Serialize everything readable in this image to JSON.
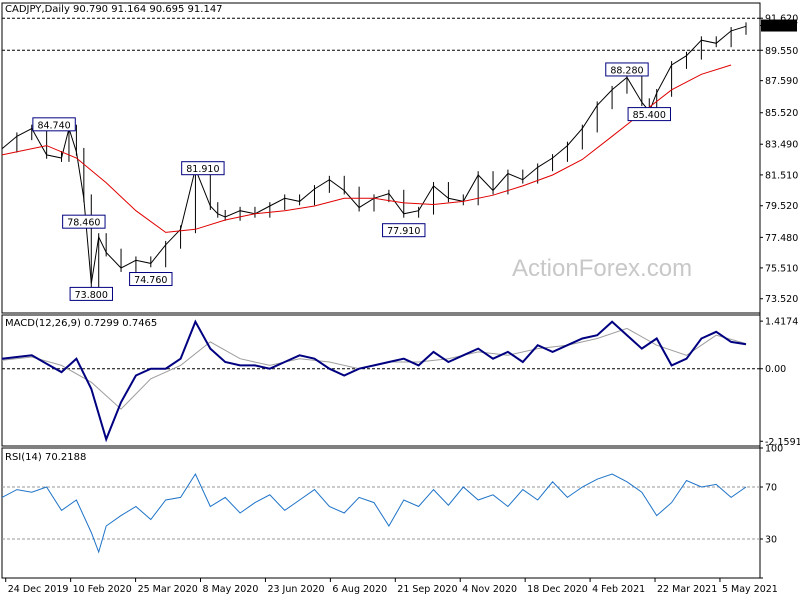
{
  "header": {
    "symbol_line": "CADJPY,Daily  90.790 91.164 90.695 91.147",
    "macd_label": "MACD(12,26,9) 0.7299 0.7465",
    "rsi_label": "RSI(14) 70.2188"
  },
  "watermark": "ActionForex.com",
  "colors": {
    "price": "#000000",
    "ma": "#e00000",
    "trend": "#000000",
    "macd": "#000080",
    "signal": "#9e9e9e",
    "rsi": "#1e73c8",
    "label_box": "#000080",
    "current_price_box": "#000000"
  },
  "chart_data": [
    {
      "type": "line",
      "panel": "price",
      "title": "CADJPY,Daily 90.790 91.164 90.695 91.147",
      "y_ticks": [
        "91.620",
        "91.147",
        "89.550",
        "87.590",
        "85.520",
        "83.490",
        "81.510",
        "79.520",
        "77.480",
        "75.510",
        "73.520"
      ],
      "ylim": [
        72.6,
        92.6
      ],
      "x_ticks": [
        "24 Dec 2019",
        "10 Feb 2020",
        "25 Mar 2020",
        "8 May 2020",
        "23 Jun 2020",
        "6 Aug 2020",
        "21 Sep 2020",
        "4 Nov 2020",
        "18 Dec 2020",
        "4 Feb 2021",
        "22 Mar 2021",
        "5 May 2021"
      ],
      "horizontal_levels": [
        91.62,
        89.55
      ],
      "current_price": "91.147",
      "annotations": [
        {
          "text": "84.740",
          "x": 0.07,
          "y": 84.74
        },
        {
          "text": "78.460",
          "x": 0.11,
          "y": 78.46
        },
        {
          "text": "73.800",
          "x": 0.12,
          "y": 73.8
        },
        {
          "text": "74.760",
          "x": 0.2,
          "y": 74.76
        },
        {
          "text": "81.910",
          "x": 0.27,
          "y": 81.91
        },
        {
          "text": "77.910",
          "x": 0.54,
          "y": 77.91
        },
        {
          "text": "88.280",
          "x": 0.84,
          "y": 88.28
        },
        {
          "text": "85.400",
          "x": 0.87,
          "y": 85.4
        }
      ],
      "series": [
        {
          "name": "Close",
          "x": [
            0,
            0.02,
            0.04,
            0.06,
            0.08,
            0.09,
            0.1,
            0.11,
            0.12,
            0.13,
            0.14,
            0.16,
            0.18,
            0.2,
            0.22,
            0.24,
            0.26,
            0.28,
            0.29,
            0.3,
            0.32,
            0.34,
            0.36,
            0.38,
            0.4,
            0.42,
            0.44,
            0.46,
            0.48,
            0.5,
            0.52,
            0.54,
            0.56,
            0.58,
            0.6,
            0.62,
            0.64,
            0.66,
            0.68,
            0.7,
            0.72,
            0.74,
            0.76,
            0.78,
            0.8,
            0.82,
            0.84,
            0.86,
            0.87,
            0.88,
            0.9,
            0.92,
            0.94,
            0.96,
            0.98,
            1
          ],
          "values": [
            83.2,
            84.0,
            84.5,
            82.8,
            82.6,
            84.5,
            83.0,
            80.0,
            74.5,
            77.5,
            76.5,
            75.5,
            76.0,
            75.8,
            77.0,
            78.0,
            81.9,
            79.5,
            79.0,
            78.8,
            79.2,
            79.0,
            79.5,
            80.0,
            79.8,
            80.6,
            81.2,
            80.5,
            79.4,
            80.0,
            80.3,
            79.0,
            79.2,
            80.8,
            80.0,
            79.8,
            81.5,
            80.5,
            81.6,
            81.2,
            82.0,
            82.6,
            83.4,
            84.5,
            86.0,
            87.0,
            87.8,
            86.2,
            85.6,
            86.8,
            88.6,
            89.2,
            90.2,
            90.0,
            90.8,
            91.1
          ]
        },
        {
          "name": "SMA",
          "x": [
            0,
            0.06,
            0.1,
            0.14,
            0.18,
            0.22,
            0.26,
            0.3,
            0.34,
            0.38,
            0.42,
            0.46,
            0.5,
            0.54,
            0.58,
            0.62,
            0.66,
            0.7,
            0.74,
            0.78,
            0.82,
            0.86,
            0.9,
            0.94,
            0.98
          ],
          "values": [
            82.8,
            83.4,
            82.6,
            81.0,
            79.2,
            77.8,
            78.0,
            78.6,
            79.0,
            79.2,
            79.5,
            80.0,
            80.0,
            79.7,
            79.6,
            79.8,
            80.2,
            80.8,
            81.5,
            82.5,
            84.0,
            85.5,
            87.0,
            88.0,
            88.6
          ]
        }
      ]
    },
    {
      "type": "line",
      "panel": "macd",
      "title": "MACD(12,26,9) 0.7299 0.7465",
      "y_ticks": [
        "1.4174",
        "0.00",
        "-2.1591"
      ],
      "ylim": [
        -2.3,
        1.6
      ],
      "series": [
        {
          "name": "MACD",
          "x": [
            0,
            0.02,
            0.04,
            0.06,
            0.08,
            0.1,
            0.12,
            0.14,
            0.16,
            0.18,
            0.2,
            0.22,
            0.24,
            0.26,
            0.28,
            0.3,
            0.32,
            0.34,
            0.36,
            0.38,
            0.4,
            0.42,
            0.44,
            0.46,
            0.48,
            0.5,
            0.52,
            0.54,
            0.56,
            0.58,
            0.6,
            0.62,
            0.64,
            0.66,
            0.68,
            0.7,
            0.72,
            0.74,
            0.76,
            0.78,
            0.8,
            0.82,
            0.84,
            0.86,
            0.88,
            0.9,
            0.92,
            0.94,
            0.96,
            0.98,
            1
          ],
          "values": [
            0.3,
            0.35,
            0.4,
            0.15,
            -0.1,
            0.3,
            -0.6,
            -2.1,
            -1.0,
            -0.2,
            0.0,
            0.0,
            0.3,
            1.4,
            0.6,
            0.2,
            0.1,
            0.1,
            0.0,
            0.2,
            0.4,
            0.3,
            0.0,
            -0.2,
            0.0,
            0.1,
            0.2,
            0.3,
            0.1,
            0.5,
            0.2,
            0.4,
            0.6,
            0.3,
            0.5,
            0.2,
            0.7,
            0.5,
            0.7,
            0.9,
            1.0,
            1.4,
            1.0,
            0.6,
            0.9,
            0.1,
            0.3,
            0.9,
            1.1,
            0.8,
            0.73
          ]
        },
        {
          "name": "Signal",
          "x": [
            0,
            0.04,
            0.08,
            0.12,
            0.16,
            0.2,
            0.24,
            0.28,
            0.32,
            0.36,
            0.4,
            0.44,
            0.48,
            0.52,
            0.56,
            0.6,
            0.64,
            0.68,
            0.72,
            0.76,
            0.8,
            0.84,
            0.88,
            0.92,
            0.96,
            1
          ],
          "values": [
            0.25,
            0.35,
            0.1,
            -0.4,
            -1.2,
            -0.3,
            0.1,
            0.8,
            0.3,
            0.1,
            0.3,
            0.2,
            0.0,
            0.2,
            0.2,
            0.3,
            0.5,
            0.4,
            0.6,
            0.7,
            0.9,
            1.2,
            0.7,
            0.4,
            1.0,
            0.75
          ]
        }
      ]
    },
    {
      "type": "line",
      "panel": "rsi",
      "title": "RSI(14) 70.2188",
      "y_ticks": [
        "100",
        "70",
        "30",
        "0"
      ],
      "ylim": [
        0,
        100
      ],
      "levels": [
        70,
        30
      ],
      "series": [
        {
          "name": "RSI",
          "x": [
            0,
            0.02,
            0.04,
            0.06,
            0.08,
            0.1,
            0.12,
            0.13,
            0.14,
            0.16,
            0.18,
            0.2,
            0.22,
            0.24,
            0.26,
            0.28,
            0.3,
            0.32,
            0.34,
            0.36,
            0.38,
            0.4,
            0.42,
            0.44,
            0.46,
            0.48,
            0.5,
            0.52,
            0.54,
            0.56,
            0.58,
            0.6,
            0.62,
            0.64,
            0.66,
            0.68,
            0.7,
            0.72,
            0.74,
            0.76,
            0.78,
            0.8,
            0.82,
            0.84,
            0.86,
            0.88,
            0.9,
            0.92,
            0.94,
            0.96,
            0.98,
            1
          ],
          "values": [
            62,
            68,
            66,
            70,
            52,
            60,
            35,
            20,
            40,
            48,
            55,
            45,
            60,
            62,
            80,
            55,
            62,
            50,
            58,
            64,
            52,
            60,
            68,
            55,
            50,
            62,
            58,
            40,
            60,
            55,
            68,
            56,
            70,
            60,
            64,
            55,
            68,
            60,
            74,
            62,
            70,
            76,
            80,
            74,
            66,
            48,
            58,
            75,
            70,
            72,
            62,
            70
          ]
        }
      ]
    }
  ]
}
